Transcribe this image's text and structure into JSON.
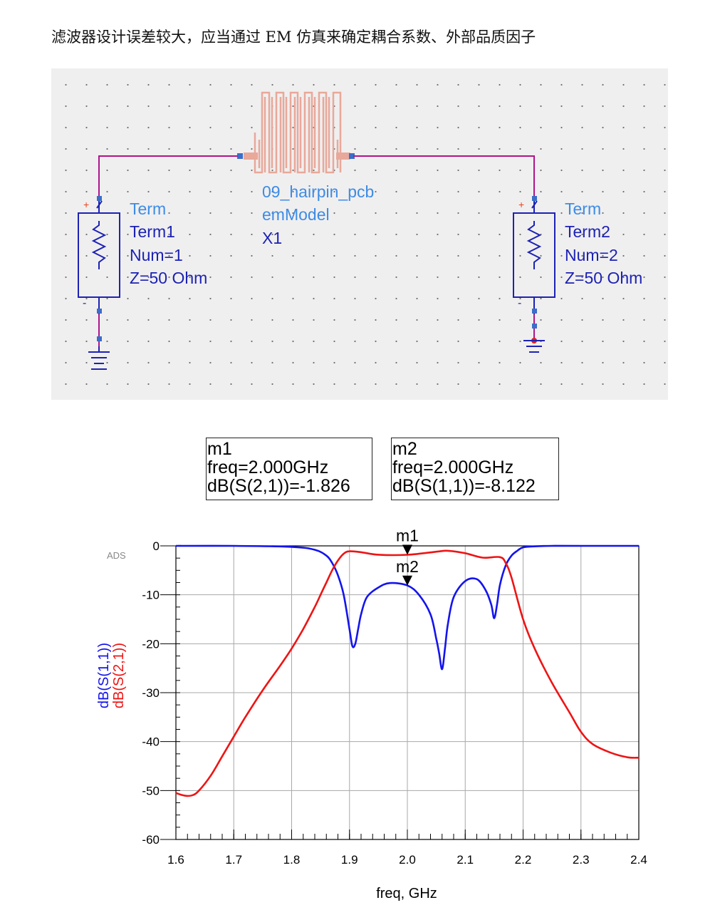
{
  "heading": "滤波器设计误差较大，应当通过 EM 仿真来确定耦合系数、外部品质因子",
  "schematic": {
    "component": {
      "name": "09_hairpin_pcb",
      "model": "emModel",
      "instance": "X1"
    },
    "term1": {
      "type": "Term",
      "name": "Term1",
      "num": "Num=1",
      "z": "Z=50 Ohm",
      "plus": "+",
      "minus": "-"
    },
    "term2": {
      "type": "Term",
      "name": "Term2",
      "num": "Num=2",
      "z": "Z=50 Ohm",
      "plus": "+",
      "minus": "-"
    }
  },
  "markers": [
    {
      "name": "m1",
      "freq_label": "freq=2.000GHz",
      "value_label": "dB(S(2,1))=-1.826",
      "x": 2.0,
      "y": -1.826
    },
    {
      "name": "m2",
      "freq_label": "freq=2.000GHz",
      "value_label": "dB(S(1,1))=-8.122",
      "x": 2.0,
      "y": -8.122
    }
  ],
  "chart_data": {
    "type": "line",
    "title": "",
    "watermark": "ADS",
    "xlabel": "freq, GHz",
    "ylabel": "dB(S(1,1))",
    "ylabel2": "dB(S(2,1))",
    "xlim": [
      1.6,
      2.4
    ],
    "ylim": [
      -60,
      0
    ],
    "xticks": [
      1.6,
      1.7,
      1.8,
      1.9,
      2.0,
      2.1,
      2.2,
      2.3,
      2.4
    ],
    "xtick_labels": [
      "1.6",
      "1.7",
      "1.8",
      "1.9",
      "2.0",
      "2.1",
      "2.2",
      "2.3",
      "2.4"
    ],
    "yticks": [
      0,
      -10,
      -20,
      -30,
      -40,
      -50,
      -60
    ],
    "ytick_labels": [
      "0",
      "-10",
      "-20",
      "-30",
      "-40",
      "-50",
      "-60"
    ],
    "grid": true,
    "series": [
      {
        "name": "dB(S(1,1))",
        "color": "#1414ee",
        "x": [
          1.6,
          1.7,
          1.8,
          1.84,
          1.86,
          1.87,
          1.88,
          1.89,
          1.9,
          1.905,
          1.91,
          1.915,
          1.92,
          1.93,
          1.95,
          1.97,
          2.0,
          2.02,
          2.04,
          2.05,
          2.055,
          2.06,
          2.065,
          2.07,
          2.08,
          2.1,
          2.12,
          2.135,
          2.145,
          2.15,
          2.155,
          2.16,
          2.17,
          2.18,
          2.19,
          2.2,
          2.22,
          2.25,
          2.3,
          2.4
        ],
        "y": [
          0,
          0,
          -0.2,
          -0.8,
          -2,
          -3.5,
          -6,
          -10,
          -17,
          -20.5,
          -20,
          -17,
          -14,
          -10.5,
          -8.5,
          -7.6,
          -8.1,
          -10,
          -14,
          -19,
          -22,
          -25.2,
          -21,
          -16,
          -10.5,
          -7.2,
          -6.8,
          -9,
          -12,
          -14.8,
          -12,
          -8,
          -4,
          -2,
          -1,
          -0.3,
          -0.1,
          0,
          0,
          0
        ]
      },
      {
        "name": "dB(S(2,1))",
        "color": "#ee1414",
        "x": [
          1.6,
          1.61,
          1.62,
          1.63,
          1.64,
          1.66,
          1.68,
          1.7,
          1.72,
          1.75,
          1.78,
          1.8,
          1.82,
          1.84,
          1.85,
          1.86,
          1.87,
          1.88,
          1.89,
          1.9,
          1.92,
          1.95,
          2.0,
          2.05,
          2.07,
          2.1,
          2.13,
          2.16,
          2.17,
          2.18,
          2.2,
          2.22,
          2.25,
          2.28,
          2.3,
          2.32,
          2.35,
          2.38,
          2.4
        ],
        "y": [
          -50.5,
          -50.9,
          -51.1,
          -50.9,
          -50,
          -47,
          -43,
          -39,
          -35,
          -29.5,
          -24.5,
          -21,
          -17,
          -12.5,
          -10,
          -7.5,
          -5,
          -3,
          -1.6,
          -1.1,
          -1.3,
          -1.8,
          -1.826,
          -1.2,
          -1,
          -1.5,
          -2.4,
          -2.3,
          -3.5,
          -6.5,
          -15,
          -21,
          -28,
          -34,
          -38,
          -40.5,
          -42.2,
          -43.2,
          -43.3
        ]
      }
    ]
  }
}
